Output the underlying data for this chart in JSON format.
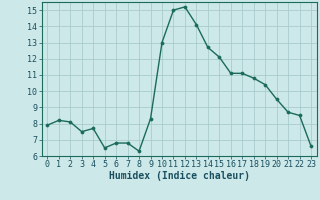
{
  "x": [
    0,
    1,
    2,
    3,
    4,
    5,
    6,
    7,
    8,
    9,
    10,
    11,
    12,
    13,
    14,
    15,
    16,
    17,
    18,
    19,
    20,
    21,
    22,
    23
  ],
  "y": [
    7.9,
    8.2,
    8.1,
    7.5,
    7.7,
    6.5,
    6.8,
    6.8,
    6.3,
    8.3,
    13.0,
    15.0,
    15.2,
    14.1,
    12.7,
    12.1,
    11.1,
    11.1,
    10.8,
    10.4,
    9.5,
    8.7,
    8.5,
    6.6
  ],
  "line_color": "#1a6b5a",
  "marker": "o",
  "markersize": 2.2,
  "linewidth": 1.0,
  "xlabel": "Humidex (Indice chaleur)",
  "xlim": [
    -0.5,
    23.5
  ],
  "ylim": [
    6,
    15.5
  ],
  "yticks": [
    6,
    7,
    8,
    9,
    10,
    11,
    12,
    13,
    14,
    15
  ],
  "xticks": [
    0,
    1,
    2,
    3,
    4,
    5,
    6,
    7,
    8,
    9,
    10,
    11,
    12,
    13,
    14,
    15,
    16,
    17,
    18,
    19,
    20,
    21,
    22,
    23
  ],
  "background_color": "#cce8e8",
  "grid_color": "#aacccc",
  "line_border_color": "#1a6b5a",
  "label_color": "#1a5060",
  "xlabel_fontsize": 7,
  "tick_fontsize": 6
}
